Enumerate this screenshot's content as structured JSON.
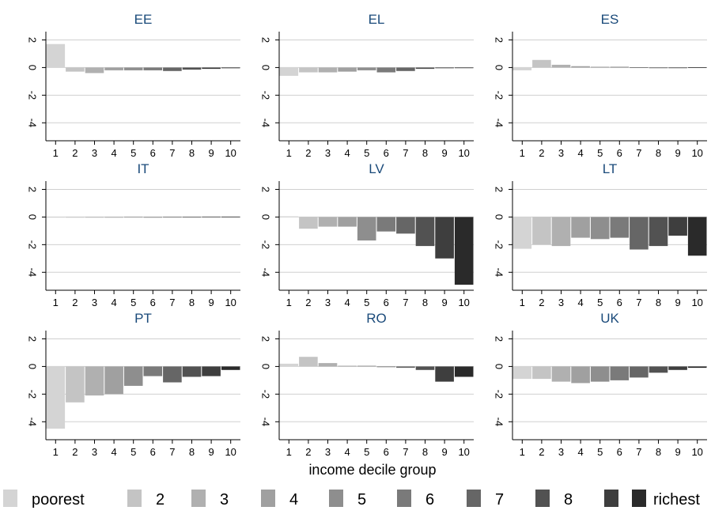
{
  "chart_data": {
    "type": "bar",
    "categories": [
      "1",
      "2",
      "3",
      "4",
      "5",
      "6",
      "7",
      "8",
      "9",
      "10"
    ],
    "ylim": [
      -5.3,
      2.6
    ],
    "yticks": [
      "2",
      "0",
      "-2",
      "-4"
    ],
    "ytick_values": [
      2,
      0,
      -2,
      -4
    ],
    "grid": true,
    "xlabel": "income decile group",
    "legend_position": "bottom",
    "legend": [
      "poorest",
      "2",
      "3",
      "4",
      "5",
      "6",
      "7",
      "8",
      "9",
      "richest"
    ],
    "colors": [
      "#d4d4d4",
      "#c4c4c4",
      "#b0b0b0",
      "#a0a0a0",
      "#8e8e8e",
      "#7a7a7a",
      "#666666",
      "#525252",
      "#3e3e3e",
      "#2a2a2a"
    ],
    "panels": [
      {
        "title": "EE",
        "values": [
          1.7,
          -0.3,
          -0.4,
          -0.2,
          -0.2,
          -0.2,
          -0.25,
          -0.15,
          -0.1,
          -0.05
        ]
      },
      {
        "title": "EL",
        "values": [
          -0.6,
          -0.35,
          -0.35,
          -0.3,
          -0.2,
          -0.35,
          -0.25,
          -0.1,
          -0.05,
          0.0
        ]
      },
      {
        "title": "ES",
        "values": [
          -0.2,
          0.55,
          0.2,
          0.1,
          0.05,
          0.05,
          0.02,
          0.0,
          -0.02,
          0.02
        ]
      },
      {
        "title": "IT",
        "values": [
          -0.02,
          -0.01,
          0.0,
          0.0,
          0.01,
          0.0,
          0.02,
          0.01,
          0.03,
          0.03
        ]
      },
      {
        "title": "LV",
        "values": [
          0.05,
          -0.85,
          -0.7,
          -0.7,
          -1.7,
          -1.05,
          -1.2,
          -2.1,
          -3.0,
          -4.9
        ]
      },
      {
        "title": "LT",
        "values": [
          -2.3,
          -2.0,
          -2.1,
          -1.5,
          -1.6,
          -1.5,
          -2.35,
          -2.1,
          -1.35,
          -2.8
        ]
      },
      {
        "title": "PT",
        "values": [
          -4.5,
          -2.6,
          -2.1,
          -2.0,
          -1.4,
          -0.7,
          -1.15,
          -0.75,
          -0.7,
          -0.25
        ]
      },
      {
        "title": "RO",
        "values": [
          0.2,
          0.7,
          0.25,
          0.05,
          0.05,
          -0.05,
          -0.1,
          -0.25,
          -1.1,
          -0.75
        ]
      },
      {
        "title": "UK",
        "values": [
          -0.9,
          -0.9,
          -1.1,
          -1.2,
          -1.1,
          -1.0,
          -0.8,
          -0.45,
          -0.25,
          -0.1
        ]
      }
    ]
  }
}
